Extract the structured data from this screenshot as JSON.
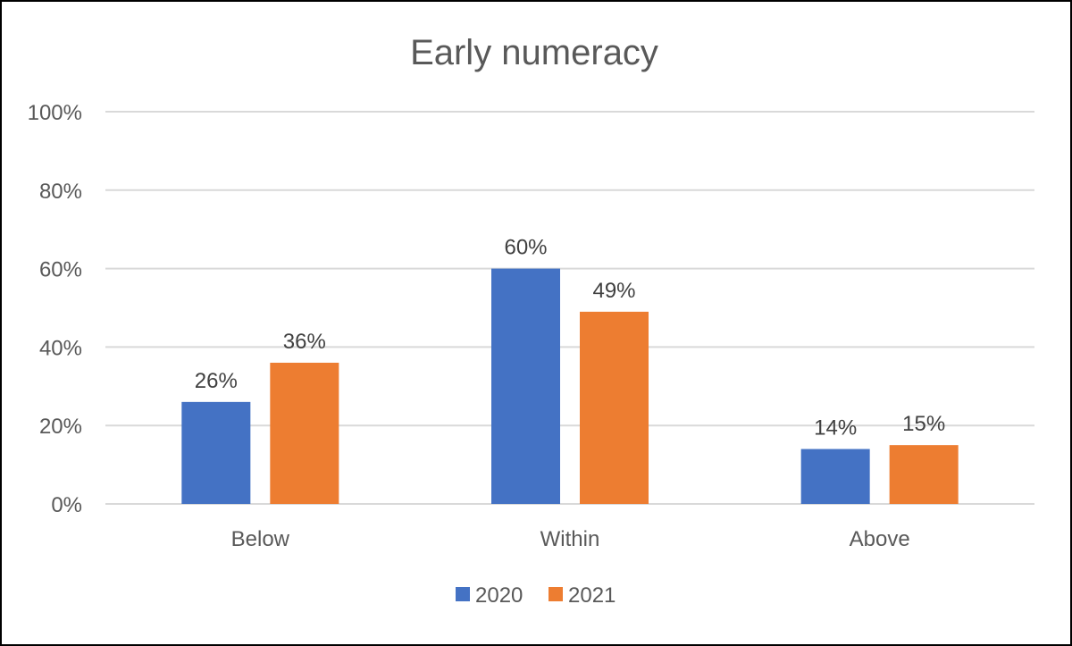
{
  "chart_data": {
    "type": "bar",
    "title": "Early numeracy",
    "categories": [
      "Below",
      "Within",
      "Above"
    ],
    "series": [
      {
        "name": "2020",
        "color": "#4472C4",
        "values": [
          26,
          60,
          14
        ],
        "labels": [
          "26%",
          "60%",
          "14%"
        ]
      },
      {
        "name": "2021",
        "color": "#ED7D31",
        "values": [
          36,
          49,
          15
        ],
        "labels": [
          "36%",
          "49%",
          "15%"
        ]
      }
    ],
    "ylim": [
      0,
      100
    ],
    "yticks": [
      0,
      20,
      40,
      60,
      80,
      100
    ],
    "ytick_labels": [
      "0%",
      "20%",
      "40%",
      "60%",
      "80%",
      "100%"
    ],
    "grid": true,
    "legend_position": "bottom"
  }
}
